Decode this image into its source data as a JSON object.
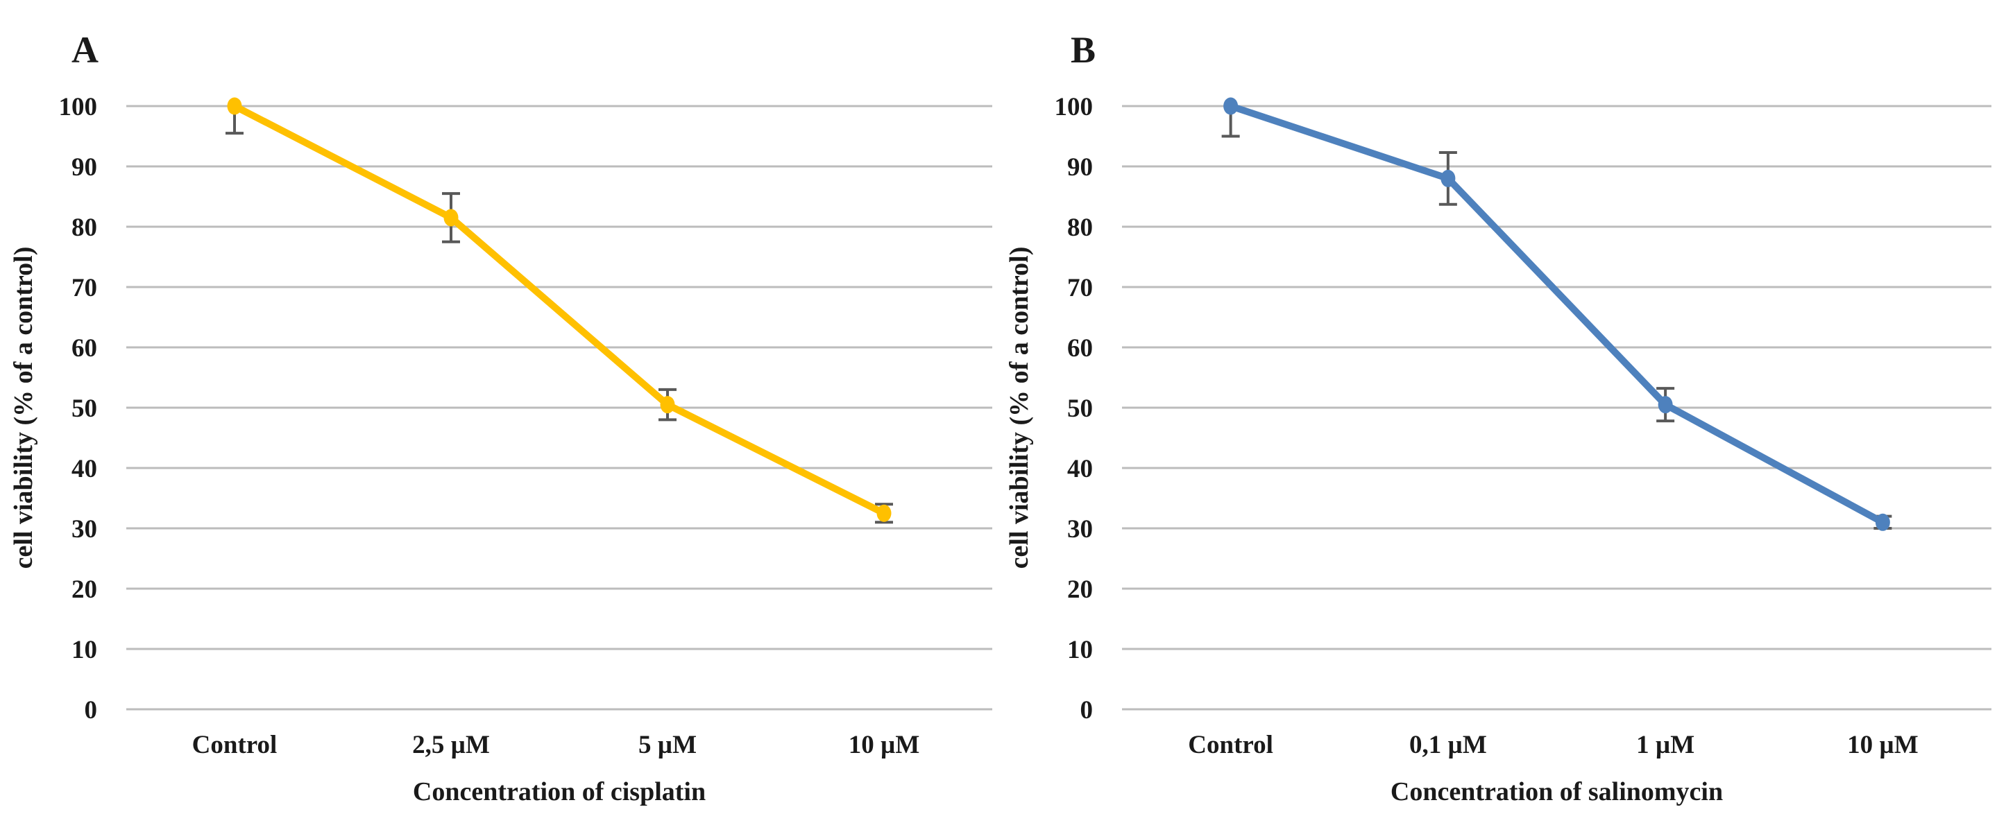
{
  "figure": {
    "background": "#ffffff",
    "text_color": "#1a1a1a",
    "gridline_color": "#bcbcbc",
    "errorbar_color": "#595959"
  },
  "chart_data": [
    {
      "type": "line",
      "panel_label": "A",
      "title": "",
      "xlabel": "Concentration of cisplatin",
      "ylabel": "cell viability (% of a control)",
      "categories": [
        "Control",
        "2,5 µM",
        "5 µM",
        "10 µM"
      ],
      "series": [
        {
          "name": "cisplatin",
          "color": "#FFC000",
          "values": [
            100,
            81.5,
            50.5,
            32.5
          ],
          "error_plus": [
            0,
            4,
            2.5,
            1.5
          ],
          "error_minus": [
            4.5,
            4,
            2.5,
            1.5
          ]
        }
      ],
      "ylim": [
        0,
        100
      ],
      "yticks": [
        0,
        10,
        20,
        30,
        40,
        50,
        60,
        70,
        80,
        90,
        100
      ],
      "grid": true,
      "legend": "none"
    },
    {
      "type": "line",
      "panel_label": "B",
      "title": "",
      "xlabel": "Concentration of salinomycin",
      "ylabel": "cell viability (% of a control)",
      "categories": [
        "Control",
        "0,1 µM",
        "1 µM",
        "10 µM"
      ],
      "series": [
        {
          "name": "salinomycin",
          "color": "#4E81BD",
          "values": [
            100,
            88,
            50.5,
            31
          ],
          "error_plus": [
            0,
            4.3,
            2.7,
            1
          ],
          "error_minus": [
            5,
            4.3,
            2.7,
            1
          ]
        }
      ],
      "ylim": [
        0,
        100
      ],
      "yticks": [
        0,
        10,
        20,
        30,
        40,
        50,
        60,
        70,
        80,
        90,
        100
      ],
      "grid": true,
      "legend": "none"
    }
  ]
}
